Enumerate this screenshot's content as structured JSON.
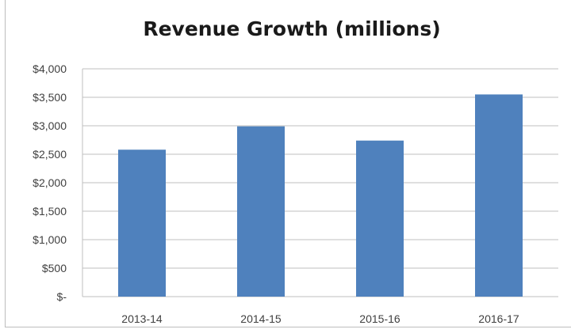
{
  "chart_data": {
    "type": "bar",
    "title": "Revenue Growth (millions)",
    "xlabel": "",
    "ylabel": "",
    "categories": [
      "2013-14",
      "2014-15",
      "2015-16",
      "2016-17"
    ],
    "values": [
      2580,
      2990,
      2740,
      3550
    ],
    "ylim": [
      0,
      4000
    ],
    "y_ticks": [
      0,
      500,
      1000,
      1500,
      2000,
      2500,
      3000,
      3500,
      4000
    ],
    "y_tick_labels": [
      "$-",
      "$500",
      "$1,000",
      "$1,500",
      "$2,000",
      "$2,500",
      "$3,000",
      "$3,500",
      "$4,000"
    ],
    "grid": true,
    "legend": "none",
    "colors": {
      "bar": "#4f81bd",
      "grid": "#bfbfbf",
      "axis": "#bfbfbf"
    }
  }
}
